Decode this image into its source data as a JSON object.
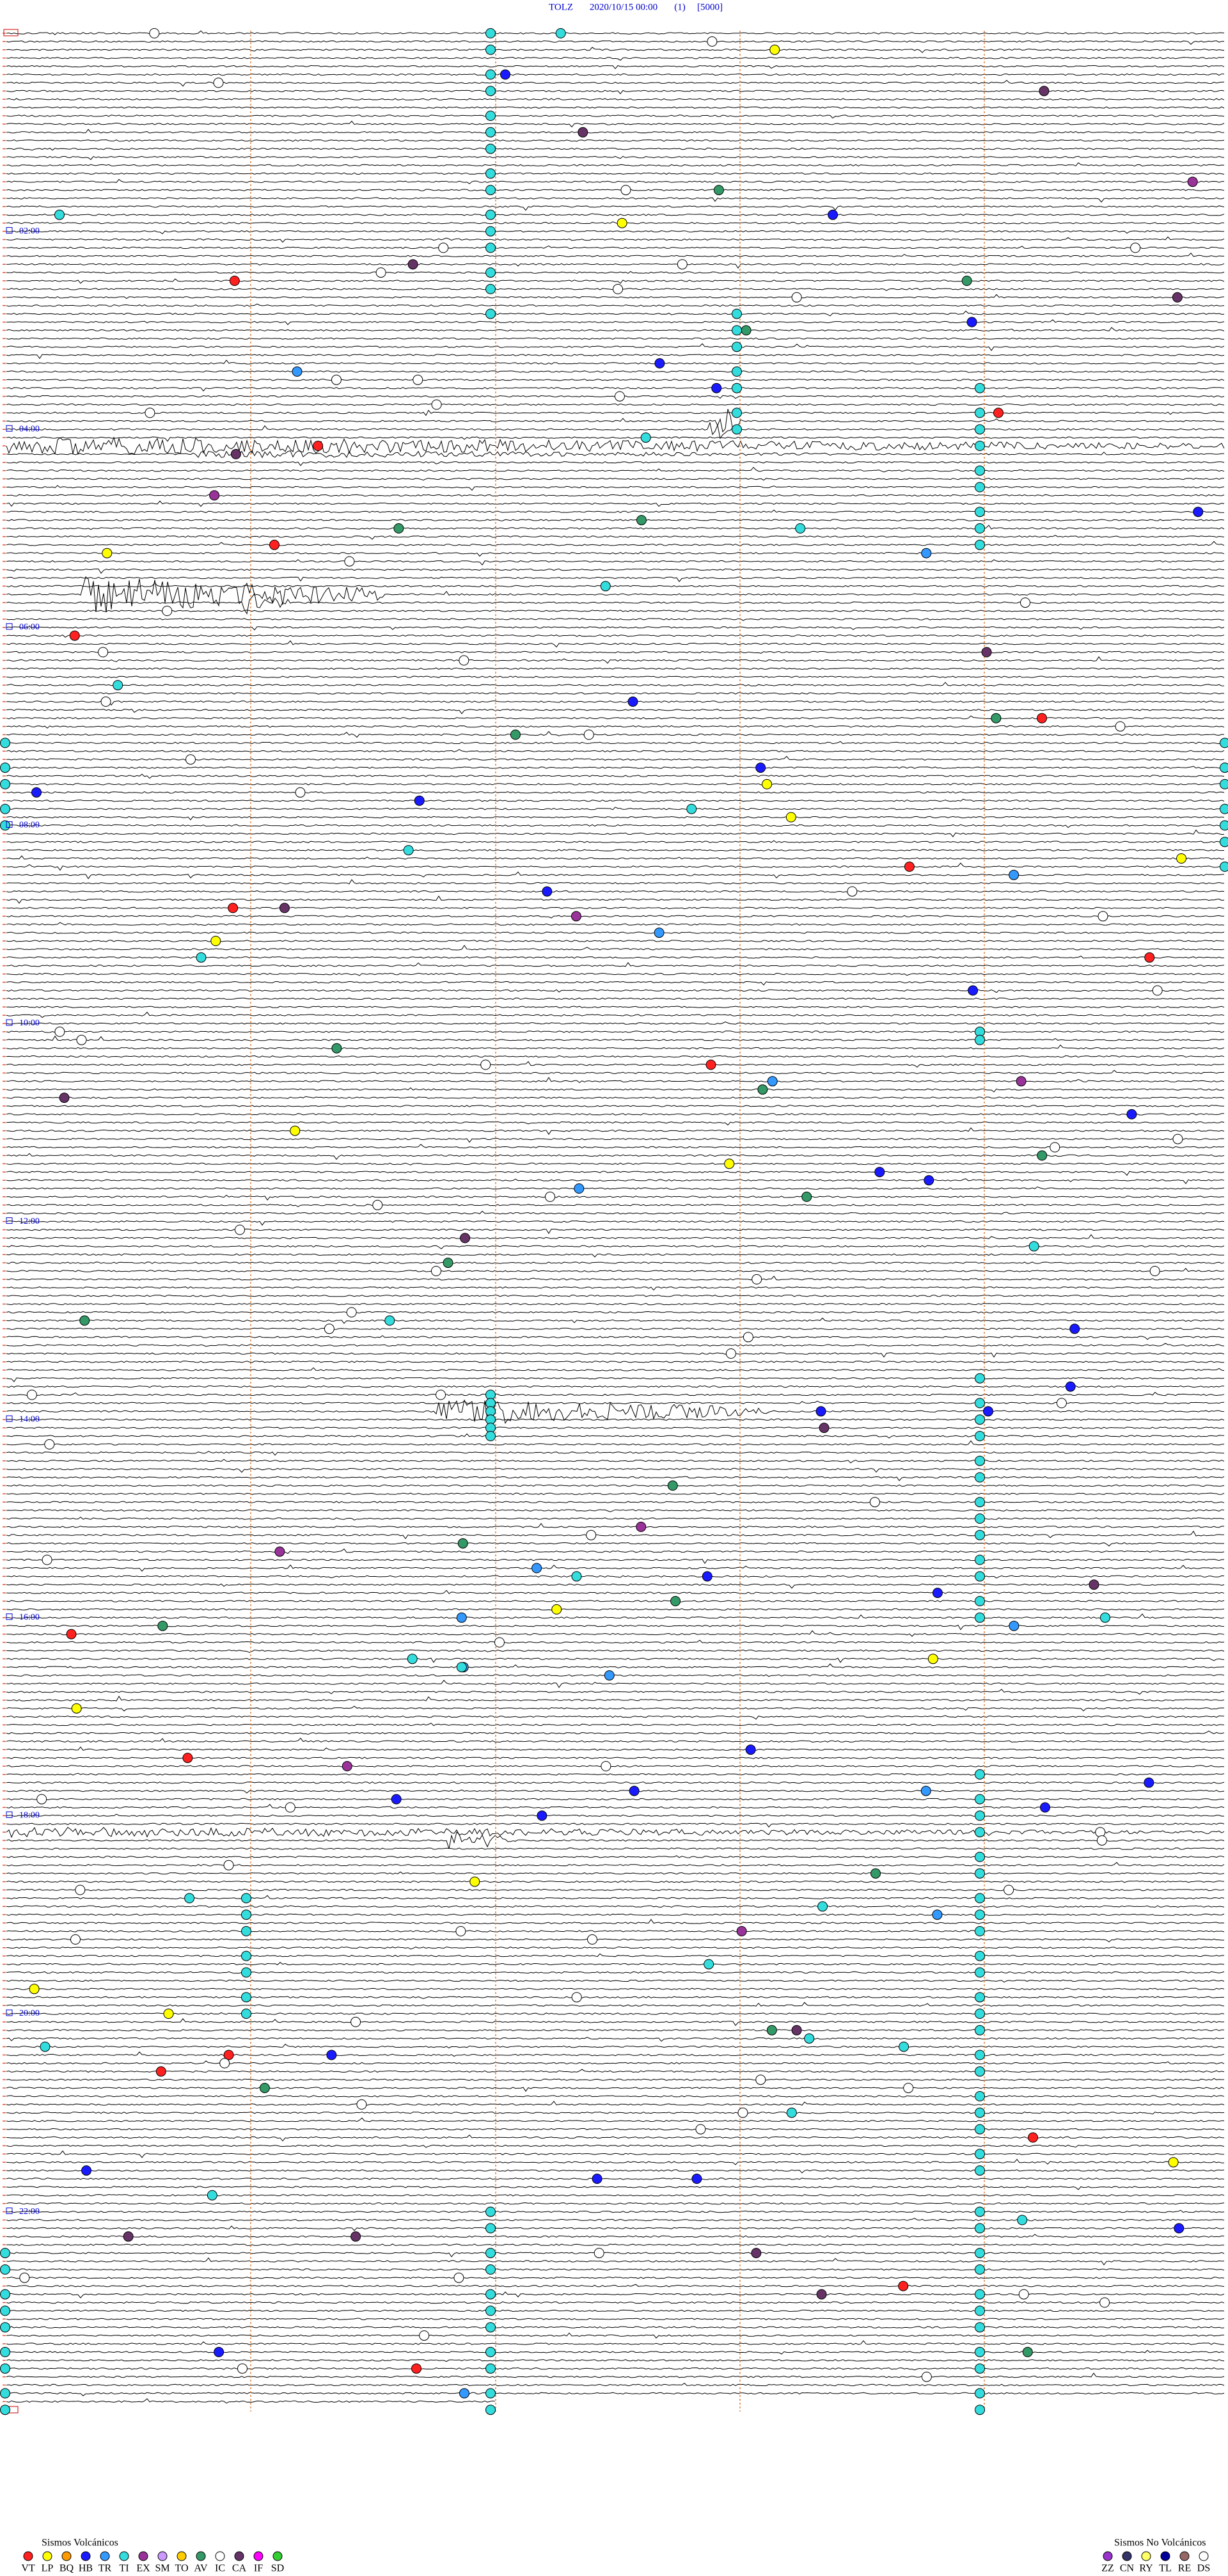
{
  "header": {
    "station": "TOLZ",
    "datetime": "2020/10/15 00:00",
    "channel": "(1)",
    "scale": "[5000]"
  },
  "hour_labels": [
    "02:00",
    "04:00",
    "06:00",
    "08:00",
    "10:00",
    "12:00",
    "14:00",
    "16:00",
    "18:00",
    "20:00",
    "22:00"
  ],
  "legend": {
    "volcanic": {
      "title": "Sismos Volcánicos",
      "items": [
        {
          "code": "VT",
          "color": "#ff2020"
        },
        {
          "code": "LP",
          "color": "#ffff00"
        },
        {
          "code": "BQ",
          "color": "#ff9900"
        },
        {
          "code": "HB",
          "color": "#1a1aff"
        },
        {
          "code": "TR",
          "color": "#3399ff"
        },
        {
          "code": "TI",
          "color": "#33dddd"
        },
        {
          "code": "EX",
          "color": "#993399"
        },
        {
          "code": "SM",
          "color": "#cc99ff"
        },
        {
          "code": "TO",
          "color": "#ffcc00"
        },
        {
          "code": "AV",
          "color": "#339966"
        },
        {
          "code": "IC",
          "color": "#ffffff"
        },
        {
          "code": "CA",
          "color": "#663366"
        },
        {
          "code": "IF",
          "color": "#ff00ff"
        },
        {
          "code": "SD",
          "color": "#33cc33"
        }
      ]
    },
    "non_volcanic": {
      "title": "Sismos No Volcánicos",
      "items": [
        {
          "code": "ZZ",
          "color": "#9933cc"
        },
        {
          "code": "CN",
          "color": "#333366"
        },
        {
          "code": "RY",
          "color": "#ffff66"
        },
        {
          "code": "TL",
          "color": "#000099"
        },
        {
          "code": "RE",
          "color": "#996666"
        },
        {
          "code": "DS",
          "color": "#ffffff"
        }
      ]
    }
  }
}
